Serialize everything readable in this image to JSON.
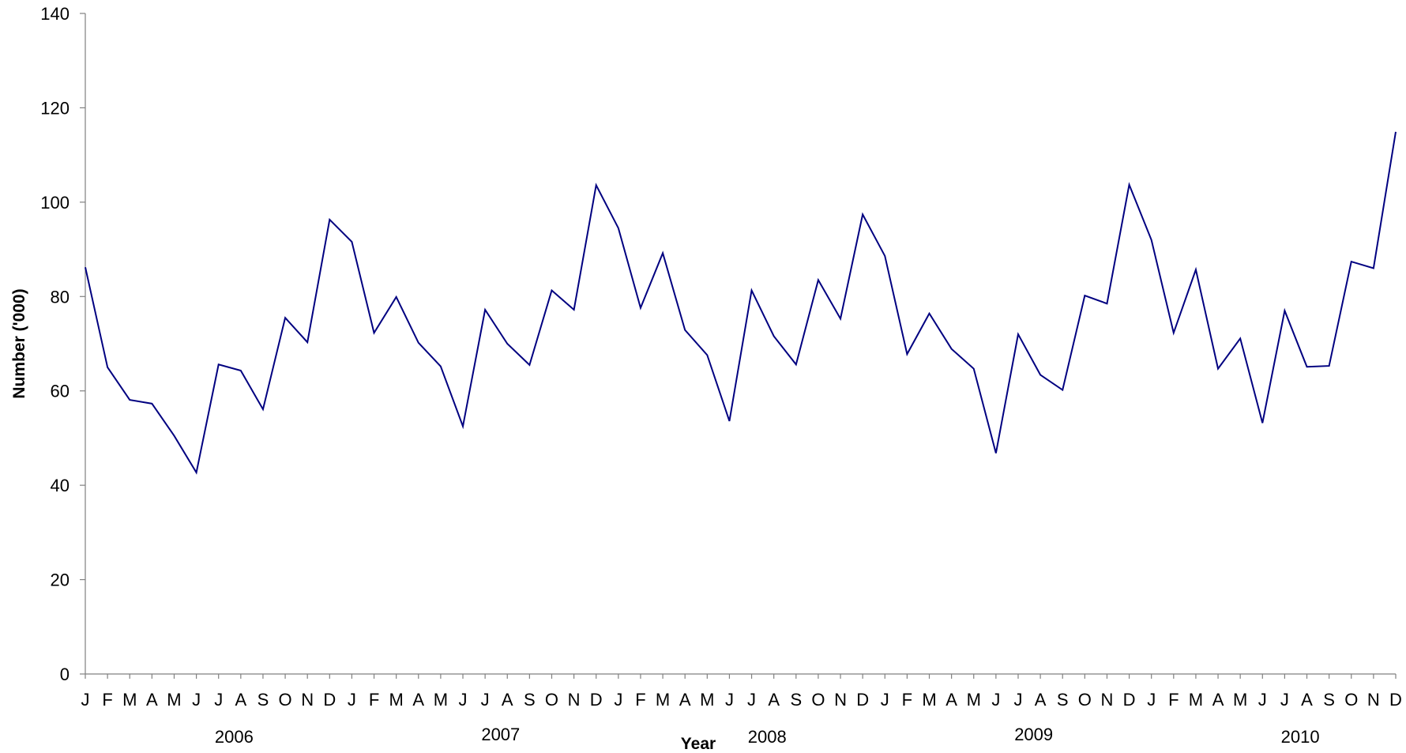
{
  "chart_data": {
    "type": "line",
    "title": "",
    "xlabel": "Year",
    "ylabel": "Number ('000)",
    "ylim": [
      0,
      140
    ],
    "y_ticks": [
      "0",
      "20",
      "40",
      "60",
      "80",
      "100",
      "120",
      "140"
    ],
    "grid": false,
    "legend": "none",
    "line_color": "#000080",
    "month_letters": [
      "J",
      "F",
      "M",
      "A",
      "M",
      "J",
      "J",
      "A",
      "S",
      "O",
      "N",
      "D"
    ],
    "years": [
      "2006",
      "2007",
      "2008",
      "2009",
      "2010"
    ],
    "series": [
      {
        "values": [
          86.2,
          65.0,
          58.1,
          57.3,
          50.5,
          42.7,
          65.6,
          64.3,
          56.1,
          75.5,
          70.3,
          96.3,
          91.6,
          72.3,
          79.9,
          70.2,
          65.2,
          52.5,
          77.2,
          70.0,
          65.5,
          81.3,
          77.2,
          103.6,
          94.5,
          77.6,
          89.2,
          72.9,
          67.6,
          53.6,
          81.3,
          71.6,
          65.6,
          83.5,
          75.3,
          97.4,
          88.6,
          67.8,
          76.4,
          68.9,
          64.7,
          46.8,
          72.0,
          63.4,
          60.2,
          80.2,
          78.5,
          103.7,
          92.0,
          72.3,
          85.7,
          64.7,
          71.1,
          53.2,
          77.0,
          65.1,
          65.3,
          87.4,
          86.0,
          114.9
        ]
      }
    ]
  }
}
